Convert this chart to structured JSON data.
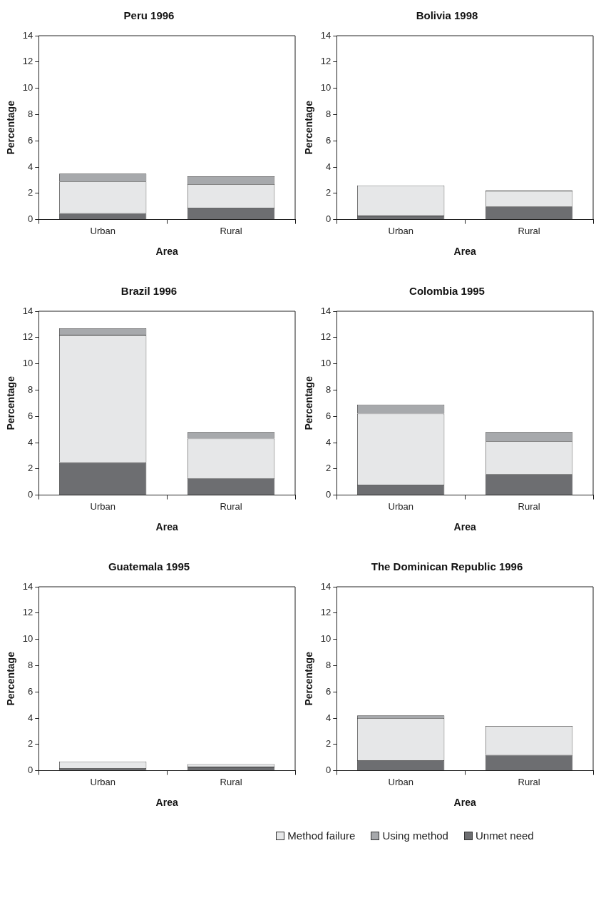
{
  "chart_data": [
    {
      "type": "bar",
      "title": "Peru 1996",
      "xlabel": "Area",
      "ylabel": "Percentage",
      "categories": [
        "Urban",
        "Rural"
      ],
      "stacked": true,
      "ylim": [
        0,
        14
      ],
      "yticks": [
        0,
        2,
        4,
        6,
        8,
        10,
        12,
        14
      ],
      "grid": false,
      "legend": false,
      "series": [
        {
          "color": "#6d6e71",
          "values": [
            0.5,
            0.9
          ]
        },
        {
          "color": "#e6e7e8",
          "values": [
            2.4,
            1.8
          ]
        },
        {
          "color": "#a7a9ac",
          "values": [
            0.6,
            0.6
          ]
        }
      ]
    },
    {
      "type": "bar",
      "title": "Bolivia 1998",
      "xlabel": "Area",
      "ylabel": "Percentage",
      "categories": [
        "Urban",
        "Rural"
      ],
      "stacked": true,
      "ylim": [
        0,
        14
      ],
      "yticks": [
        0,
        2,
        4,
        6,
        8,
        10,
        12,
        14
      ],
      "grid": false,
      "legend": false,
      "series": [
        {
          "color": "#6d6e71",
          "values": [
            0.3,
            1.0
          ]
        },
        {
          "color": "#e6e7e8",
          "values": [
            2.3,
            1.2
          ]
        },
        {
          "color": "#a7a9ac",
          "values": [
            0,
            0
          ]
        }
      ]
    },
    {
      "type": "bar",
      "title": "Brazil 1996",
      "xlabel": "Area",
      "ylabel": "Percentage",
      "categories": [
        "Urban",
        "Rural"
      ],
      "stacked": true,
      "ylim": [
        0,
        14
      ],
      "yticks": [
        0,
        2,
        4,
        6,
        8,
        10,
        12,
        14
      ],
      "grid": false,
      "legend": false,
      "series": [
        {
          "color": "#6d6e71",
          "values": [
            2.5,
            1.3
          ]
        },
        {
          "color": "#e6e7e8",
          "values": [
            9.7,
            3.0
          ]
        },
        {
          "color": "#a7a9ac",
          "values": [
            0.5,
            0.5
          ]
        }
      ]
    },
    {
      "type": "bar",
      "title": "Colombia 1995",
      "xlabel": "Area",
      "ylabel": "Percentage",
      "categories": [
        "Urban",
        "Rural"
      ],
      "stacked": true,
      "ylim": [
        0,
        14
      ],
      "yticks": [
        0,
        2,
        4,
        6,
        8,
        10,
        12,
        14
      ],
      "grid": false,
      "legend": false,
      "series": [
        {
          "color": "#6d6e71",
          "values": [
            0.8,
            1.6
          ]
        },
        {
          "color": "#e6e7e8",
          "values": [
            5.4,
            2.5
          ]
        },
        {
          "color": "#a7a9ac",
          "values": [
            0.7,
            0.7
          ]
        }
      ]
    },
    {
      "type": "bar",
      "title": "Guatemala 1995",
      "xlabel": "Area",
      "ylabel": "Percentage",
      "categories": [
        "Urban",
        "Rural"
      ],
      "stacked": true,
      "ylim": [
        0,
        14
      ],
      "yticks": [
        0,
        2,
        4,
        6,
        8,
        10,
        12,
        14
      ],
      "grid": false,
      "legend": false,
      "series": [
        {
          "color": "#6d6e71",
          "values": [
            0.2,
            0.3
          ]
        },
        {
          "color": "#e6e7e8",
          "values": [
            0.5,
            0.2
          ]
        },
        {
          "color": "#a7a9ac",
          "values": [
            0,
            0
          ]
        }
      ]
    },
    {
      "type": "bar",
      "title": "The Dominican Republic 1996",
      "xlabel": "Area",
      "ylabel": "Percentage",
      "categories": [
        "Urban",
        "Rural"
      ],
      "stacked": true,
      "ylim": [
        0,
        14
      ],
      "yticks": [
        0,
        2,
        4,
        6,
        8,
        10,
        12,
        14
      ],
      "grid": false,
      "legend": "bottom",
      "series": [
        {
          "name": "Unmet need",
          "color": "#6d6e71",
          "values": [
            0.8,
            1.2
          ]
        },
        {
          "name": "Method failure",
          "color": "#e6e7e8",
          "values": [
            3.2,
            2.2
          ]
        },
        {
          "name": "Using method",
          "color": "#a7a9ac",
          "values": [
            0.2,
            0
          ]
        }
      ]
    }
  ]
}
